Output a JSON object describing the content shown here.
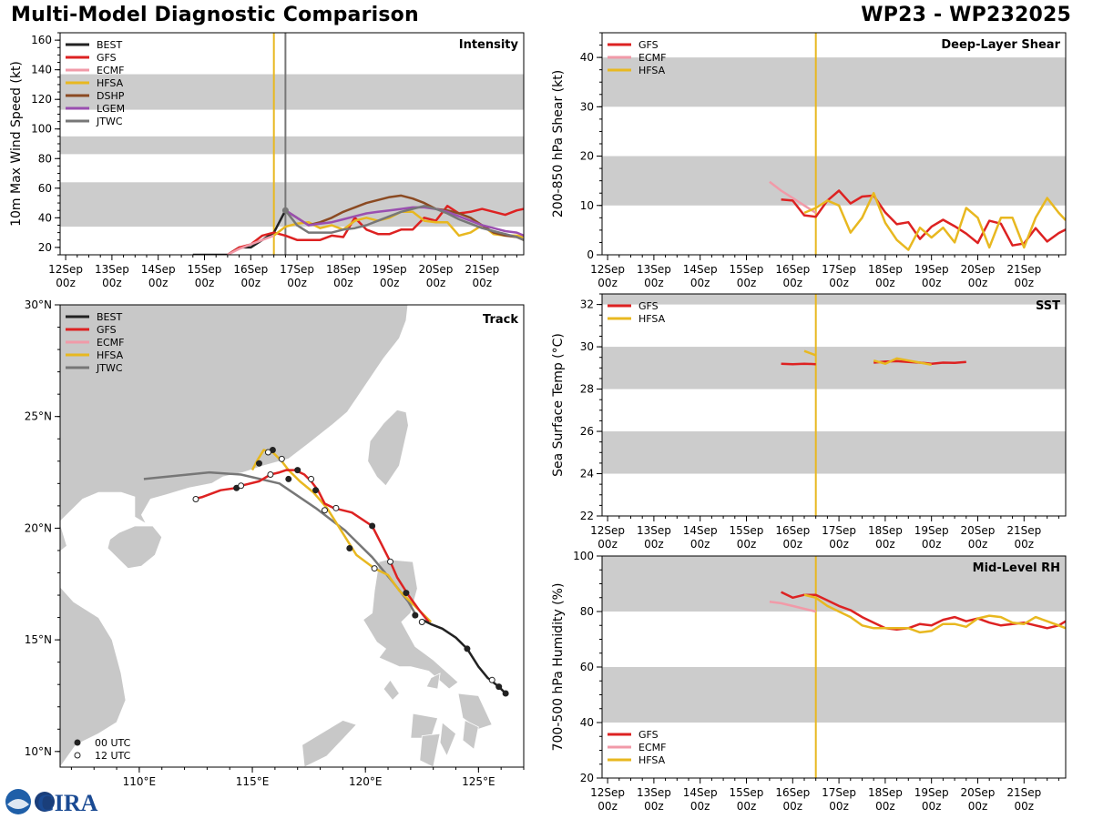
{
  "header": {
    "title_left": "Multi-Model Diagnostic Comparison",
    "title_right": "WP23 - WP232025"
  },
  "colors": {
    "BEST": "#222222",
    "GFS": "#dd2222",
    "ECMF": "#f19aa8",
    "HFSA": "#e8b820",
    "DSHP": "#8b4a22",
    "LGEM": "#9a4fb0",
    "JTWC": "#777777"
  },
  "time_ticks": {
    "labels": [
      "12Sep",
      "13Sep",
      "14Sep",
      "15Sep",
      "16Sep",
      "17Sep",
      "18Sep",
      "19Sep",
      "20Sep",
      "21Sep"
    ],
    "sub": "00z"
  },
  "logo_text": "CIRA",
  "chart_data": [
    {
      "id": "intensity",
      "type": "line",
      "title": "Intensity",
      "ylabel": "10m Max Wind Speed (kt)",
      "ylim": [
        15,
        165
      ],
      "xlim": [
        -0.12,
        9.9
      ],
      "yticks": [
        20,
        40,
        60,
        80,
        100,
        120,
        140,
        160
      ],
      "bands": [
        [
          34,
          64
        ],
        [
          83,
          95
        ],
        [
          113,
          137
        ]
      ],
      "vlines": [
        {
          "x": 4.5,
          "series": "HFSA"
        },
        {
          "x": 4.75,
          "series": "JTWC"
        }
      ],
      "legend": [
        "BEST",
        "GFS",
        "ECMF",
        "HFSA",
        "DSHP",
        "LGEM",
        "JTWC"
      ],
      "series": [
        {
          "name": "BEST",
          "x": [
            2.75,
            3.0,
            3.25,
            3.5,
            3.75,
            4.0,
            4.25,
            4.5,
            4.75
          ],
          "y": [
            15,
            15,
            15,
            15,
            20,
            20,
            25,
            30,
            45
          ]
        },
        {
          "name": "GFS",
          "x": [
            3.5,
            3.75,
            4.0,
            4.25,
            4.5,
            4.75,
            5.0,
            5.25,
            5.5,
            5.75,
            6.0,
            6.25,
            6.5,
            6.75,
            7.0,
            7.25,
            7.5,
            7.75,
            8.0,
            8.25,
            8.5,
            8.75,
            9.0,
            9.25,
            9.5,
            9.75,
            9.9
          ],
          "y": [
            15,
            20,
            22,
            28,
            30,
            28,
            25,
            25,
            25,
            28,
            27,
            40,
            32,
            29,
            29,
            32,
            32,
            40,
            38,
            48,
            43,
            44,
            46,
            44,
            42,
            45,
            46
          ]
        },
        {
          "name": "ECMF",
          "x": [
            3.5,
            3.75,
            4.0,
            4.25,
            4.5
          ],
          "y": [
            15,
            19,
            22,
            25,
            28
          ]
        },
        {
          "name": "HFSA",
          "x": [
            4.5,
            4.75,
            5.0,
            5.25,
            5.5,
            5.75,
            6.0,
            6.25,
            6.5,
            6.75,
            7.0,
            7.25,
            7.5,
            7.75,
            8.0,
            8.25,
            8.5,
            8.75,
            9.0,
            9.25,
            9.5,
            9.75,
            9.9
          ],
          "y": [
            28,
            34,
            36,
            37,
            33,
            35,
            32,
            38,
            40,
            38,
            40,
            44,
            44,
            38,
            37,
            37,
            28,
            30,
            35,
            29,
            28,
            28,
            27
          ]
        },
        {
          "name": "DSHP",
          "x": [
            4.75,
            5.0,
            5.25,
            5.5,
            5.75,
            6.0,
            6.25,
            6.5,
            6.75,
            7.0,
            7.25,
            7.5,
            7.75,
            8.0,
            8.25,
            8.5,
            8.75,
            9.0,
            9.25,
            9.5,
            9.75,
            9.9
          ],
          "y": [
            45,
            40,
            35,
            37,
            40,
            44,
            47,
            50,
            52,
            54,
            55,
            53,
            50,
            46,
            45,
            43,
            40,
            35,
            30,
            28,
            27,
            25
          ]
        },
        {
          "name": "LGEM",
          "x": [
            4.75,
            5.0,
            5.25,
            5.5,
            5.75,
            6.0,
            6.25,
            6.5,
            6.75,
            7.0,
            7.25,
            7.5,
            7.75,
            8.0,
            8.25,
            8.5,
            8.75,
            9.0,
            9.25,
            9.5,
            9.75,
            9.9
          ],
          "y": [
            45,
            40,
            35,
            36,
            37,
            39,
            41,
            43,
            44,
            45,
            46,
            47,
            47,
            46,
            44,
            41,
            38,
            35,
            33,
            31,
            30,
            28
          ]
        },
        {
          "name": "JTWC",
          "x": [
            4.75,
            5.0,
            5.25,
            5.5,
            5.75,
            6.0,
            6.25,
            6.5,
            6.75,
            7.0,
            7.25,
            7.5,
            7.75,
            8.0,
            8.25,
            8.5,
            8.75,
            9.0,
            9.25,
            9.5,
            9.75,
            9.9
          ],
          "y": [
            45,
            35,
            30,
            30,
            30,
            32,
            33,
            35,
            38,
            41,
            44,
            46,
            48,
            46,
            43,
            39,
            36,
            33,
            31,
            29,
            27,
            25
          ]
        }
      ]
    },
    {
      "id": "shear",
      "type": "line",
      "title": "Deep-Layer Shear",
      "ylabel": "200-850 hPa Shear (kt)",
      "ylim": [
        0,
        45
      ],
      "xlim": [
        -0.12,
        9.9
      ],
      "yticks": [
        0,
        10,
        20,
        30,
        40
      ],
      "bands": [
        [
          10,
          20
        ],
        [
          30,
          40
        ]
      ],
      "vlines": [
        {
          "x": 4.5,
          "series": "HFSA"
        }
      ],
      "legend": [
        "GFS",
        "ECMF",
        "HFSA"
      ],
      "series": [
        {
          "name": "GFS",
          "x": [
            3.75,
            4.0,
            4.25,
            4.5,
            4.75,
            5.0,
            5.25,
            5.5,
            5.75,
            6.0,
            6.25,
            6.5,
            6.75,
            7.0,
            7.25,
            7.5,
            7.75,
            8.0,
            8.25,
            8.5,
            8.75,
            9.0,
            9.25,
            9.5,
            9.75,
            9.9
          ],
          "y": [
            11.2,
            11,
            8,
            7.7,
            11,
            13,
            10.4,
            11.8,
            12,
            8.6,
            6.2,
            6.6,
            3.2,
            5.7,
            7.1,
            5.8,
            4.3,
            2.4,
            6.9,
            6.3,
            1.9,
            2.3,
            5.4,
            2.7,
            4.4,
            5.1
          ]
        },
        {
          "name": "ECMF",
          "x": [
            3.5,
            3.75,
            4.0,
            4.25,
            4.5
          ],
          "y": [
            14.8,
            13,
            11.5,
            10,
            8.5
          ]
        },
        {
          "name": "HFSA",
          "x": [
            4.25,
            4.5,
            4.75,
            5.0,
            5.25,
            5.5,
            5.75,
            6.0,
            6.25,
            6.5,
            6.75,
            7.0,
            7.25,
            7.5,
            7.75,
            8.0,
            8.25,
            8.5,
            8.75,
            9.0,
            9.25,
            9.5,
            9.75,
            9.9
          ],
          "y": [
            8.5,
            9.5,
            11,
            10,
            4.5,
            7.5,
            12.5,
            6.5,
            3,
            1,
            5.5,
            3.5,
            5.5,
            2.5,
            9.5,
            7.5,
            1.5,
            7.5,
            7.5,
            1.5,
            7.5,
            11.5,
            8.5,
            7
          ]
        }
      ]
    },
    {
      "id": "sst",
      "type": "line",
      "title": "SST",
      "ylabel": "Sea Surface Temp (°C)",
      "ylim": [
        22,
        32.5
      ],
      "xlim": [
        -0.12,
        9.9
      ],
      "yticks": [
        22,
        24,
        26,
        28,
        30,
        32
      ],
      "bands": [
        [
          24,
          26
        ],
        [
          28,
          30
        ],
        [
          32,
          33
        ]
      ],
      "vlines": [
        {
          "x": 4.5,
          "series": "HFSA"
        }
      ],
      "legend": [
        "GFS",
        "HFSA"
      ],
      "series": [
        {
          "name": "GFS",
          "x": [
            3.75,
            4.0,
            4.25,
            4.5
          ],
          "y": [
            29.2,
            29.18,
            29.2,
            29.18
          ]
        },
        {
          "name": "GFS",
          "x": [
            5.75,
            6.0,
            6.25,
            6.5,
            6.75,
            7.0,
            7.25,
            7.5,
            7.75
          ],
          "y": [
            29.25,
            29.3,
            29.32,
            29.28,
            29.25,
            29.2,
            29.25,
            29.24,
            29.28
          ]
        },
        {
          "name": "HFSA",
          "x": [
            4.25,
            4.5
          ],
          "y": [
            29.8,
            29.6
          ]
        },
        {
          "name": "HFSA",
          "x": [
            5.75,
            6.0,
            6.25,
            6.5,
            6.75,
            7.0
          ],
          "y": [
            29.35,
            29.2,
            29.45,
            29.35,
            29.25,
            29.15
          ]
        }
      ]
    },
    {
      "id": "rh",
      "type": "line",
      "title": "Mid-Level RH",
      "ylabel": "700-500 hPa Humidity (%)",
      "ylim": [
        20,
        100
      ],
      "xlim": [
        -0.12,
        9.9
      ],
      "yticks": [
        20,
        40,
        60,
        80,
        100
      ],
      "bands": [
        [
          40,
          60
        ],
        [
          80,
          100
        ]
      ],
      "vlines": [
        {
          "x": 4.5,
          "series": "HFSA"
        }
      ],
      "legend": [
        "GFS",
        "ECMF",
        "HFSA"
      ],
      "series": [
        {
          "name": "GFS",
          "x": [
            3.75,
            4.0,
            4.25,
            4.5,
            4.75,
            5.0,
            5.25,
            5.5,
            5.75,
            6.0,
            6.25,
            6.5,
            6.75,
            7.0,
            7.25,
            7.5,
            7.75,
            8.0,
            8.25,
            8.5,
            8.75,
            9.0,
            9.25,
            9.5,
            9.75,
            9.9
          ],
          "y": [
            87,
            85,
            86,
            86,
            84,
            82,
            80.5,
            78,
            76,
            74,
            73.5,
            74,
            75.5,
            75,
            77,
            78,
            76.5,
            77.5,
            76,
            75,
            75.5,
            76,
            75,
            74,
            75,
            76.5
          ]
        },
        {
          "name": "ECMF",
          "x": [
            3.5,
            3.75,
            4.0,
            4.25,
            4.5
          ],
          "y": [
            83.5,
            83,
            82,
            81,
            80
          ]
        },
        {
          "name": "HFSA",
          "x": [
            4.25,
            4.5,
            4.75,
            5.0,
            5.25,
            5.5,
            5.75,
            6.0,
            6.25,
            6.5,
            6.75,
            7.0,
            7.25,
            7.5,
            7.75,
            8.0,
            8.25,
            8.5,
            8.75,
            9.0,
            9.25,
            9.5,
            9.75,
            9.9
          ],
          "y": [
            86,
            85,
            82,
            80,
            78,
            75,
            74,
            74,
            74,
            74,
            72.5,
            73,
            75.5,
            75.5,
            74.5,
            77.5,
            78.5,
            78,
            76,
            75.5,
            78,
            76.5,
            75,
            74
          ]
        }
      ]
    },
    {
      "id": "track",
      "type": "line",
      "title": "Track",
      "xlim": [
        106.5,
        127
      ],
      "ylim": [
        9.3,
        30
      ],
      "xticks": [
        110,
        115,
        120,
        125
      ],
      "xtick_labels": [
        "110°E",
        "115°E",
        "120°E",
        "125°E"
      ],
      "yticks": [
        10,
        15,
        20,
        25,
        30
      ],
      "ytick_labels": [
        "10°N",
        "15°N",
        "20°N",
        "25°N",
        "30°N"
      ],
      "legend": [
        "BEST",
        "GFS",
        "ECMF",
        "HFSA",
        "JTWC"
      ],
      "marker_legend": [
        "00 UTC",
        "12 UTC"
      ],
      "series": [
        {
          "name": "BEST",
          "lon": [
            126.2,
            125.9,
            125.4,
            125,
            124.5,
            124,
            123.4,
            122.9,
            122.5
          ],
          "lat": [
            12.6,
            12.9,
            13.3,
            13.8,
            14.6,
            15.1,
            15.5,
            15.7,
            15.9
          ]
        },
        {
          "name": "GFS",
          "lon": [
            122.8,
            122.4,
            121.9,
            121.4,
            121.1,
            120.7,
            120.3,
            119.4,
            118.6,
            118.2,
            117.9,
            117.6,
            117.3,
            116.9,
            116.5,
            116.2,
            115.8,
            115.3,
            114.5,
            114.3,
            113.6,
            112.8,
            112.4
          ],
          "lat": [
            15.8,
            16.3,
            17,
            17.8,
            18.5,
            19.3,
            20.1,
            20.7,
            20.9,
            21.1,
            21.7,
            22.1,
            22.4,
            22.6,
            22.6,
            22.5,
            22.4,
            22.1,
            21.9,
            21.8,
            21.7,
            21.4,
            21.3
          ]
        },
        {
          "name": "HFSA",
          "lon": [
            122.9,
            122.4,
            121.5,
            121,
            120.4,
            119.6,
            118.8,
            118.3,
            117.7,
            117.1,
            116.6,
            116.3,
            115.9,
            115.5,
            115.2,
            115.0
          ],
          "lat": [
            15.8,
            16.3,
            17.2,
            17.9,
            18.2,
            18.8,
            20.1,
            20.9,
            21.6,
            22.1,
            22.6,
            23.0,
            23.4,
            23.5,
            23.0,
            22.6
          ]
        },
        {
          "name": "JTWC",
          "lon": [
            122.3,
            121.9,
            121.2,
            120.3,
            119.1,
            117.8,
            116.2,
            114.5,
            113.1,
            110.2
          ],
          "lat": [
            16.0,
            16.7,
            17.6,
            18.7,
            19.9,
            20.9,
            22.0,
            22.4,
            22.5,
            22.2
          ]
        }
      ],
      "markers_00": [
        [
          126.2,
          12.6
        ],
        [
          125.9,
          12.9
        ],
        [
          124.5,
          14.6
        ],
        [
          121.8,
          17.1
        ],
        [
          120.3,
          20.1
        ],
        [
          119.3,
          19.1
        ],
        [
          117.8,
          21.7
        ],
        [
          117.0,
          22.6
        ],
        [
          116.6,
          22.2
        ],
        [
          115.9,
          23.5
        ],
        [
          115.3,
          22.9
        ],
        [
          114.3,
          21.8
        ],
        [
          122.2,
          16.1
        ]
      ],
      "markers_12": [
        [
          125.6,
          13.2
        ],
        [
          122.5,
          15.8
        ],
        [
          121.1,
          18.5
        ],
        [
          120.4,
          18.2
        ],
        [
          118.7,
          20.9
        ],
        [
          118.2,
          20.8
        ],
        [
          117.6,
          22.2
        ],
        [
          116.3,
          23.1
        ],
        [
          115.8,
          22.4
        ],
        [
          115.7,
          23.4
        ],
        [
          114.5,
          21.9
        ],
        [
          112.5,
          21.3
        ]
      ]
    }
  ]
}
